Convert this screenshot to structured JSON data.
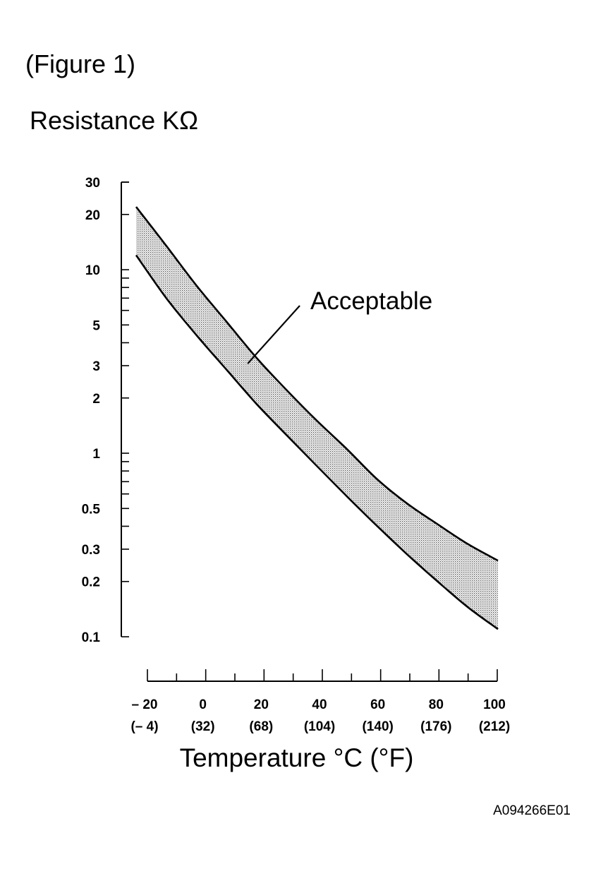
{
  "figure_label": "(Figure 1)",
  "figure_id": "A094266E01",
  "chart_data": {
    "type": "area",
    "ylabel": "Resistance KΩ",
    "xlabel": "Temperature °C (°F)",
    "y_scale": "log",
    "ylim": [
      0.1,
      30
    ],
    "xlim": [
      -20,
      100
    ],
    "y_tick_labels": [
      "30",
      "20",
      "10",
      "5",
      "3",
      "2",
      "1",
      "0.5",
      "0.3",
      "0.2",
      "0.1"
    ],
    "y_ticks": [
      30,
      20,
      10,
      5,
      3,
      2,
      1,
      0.5,
      0.3,
      0.2,
      0.1
    ],
    "x_ticks": [
      {
        "c": -20,
        "label": "– 20",
        "f_label": "(– 4)"
      },
      {
        "c": 0,
        "label": "0",
        "f_label": "(32)"
      },
      {
        "c": 20,
        "label": "20",
        "f_label": "(68)"
      },
      {
        "c": 40,
        "label": "40",
        "f_label": "(104)"
      },
      {
        "c": 60,
        "label": "60",
        "f_label": "(140)"
      },
      {
        "c": 80,
        "label": "80",
        "f_label": "(176)"
      },
      {
        "c": 100,
        "label": "100",
        "f_label": "(212)"
      }
    ],
    "series": [
      {
        "x": [
          -20,
          -10,
          0,
          10,
          20,
          30,
          40,
          50,
          60,
          70,
          80,
          90,
          100
        ],
        "values": [
          22,
          13.5,
          8.2,
          5.2,
          3.3,
          2.2,
          1.5,
          1.05,
          0.72,
          0.53,
          0.41,
          0.32,
          0.26
        ]
      },
      {
        "x": [
          -20,
          -10,
          0,
          10,
          20,
          30,
          40,
          50,
          60,
          70,
          80,
          90,
          100
        ],
        "values": [
          12,
          7.0,
          4.4,
          2.85,
          1.85,
          1.25,
          0.85,
          0.58,
          0.4,
          0.28,
          0.2,
          0.145,
          0.11
        ]
      }
    ],
    "annotation": {
      "text": "Acceptable",
      "x": 17,
      "y": 3.0
    },
    "grid": false,
    "legend": "none"
  }
}
